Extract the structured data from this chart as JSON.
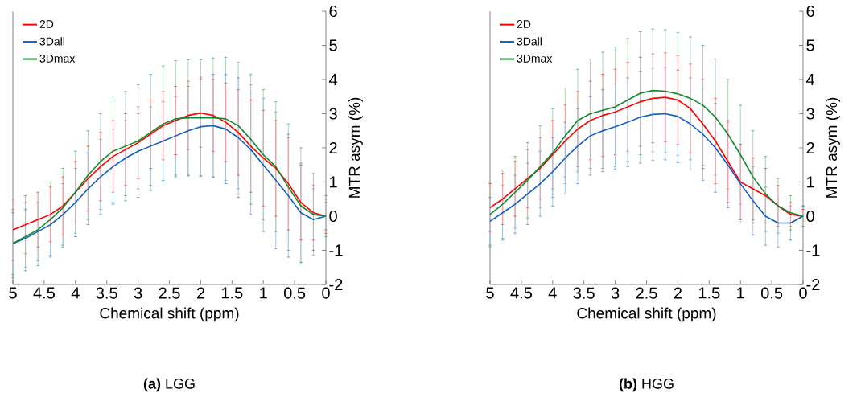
{
  "chart_data": [
    {
      "type": "line",
      "title": "**(a)** LGG",
      "xlabel": "Chemical shift (ppm)",
      "ylabel": "MTR asym (%)",
      "x": [
        5,
        4.8,
        4.6,
        4.4,
        4.2,
        4.0,
        3.8,
        3.6,
        3.4,
        3.2,
        3.0,
        2.8,
        2.6,
        2.4,
        2.2,
        2.0,
        1.8,
        1.6,
        1.4,
        1.2,
        1.0,
        0.8,
        0.6,
        0.4,
        0.2,
        0
      ],
      "series": [
        {
          "name": "2D",
          "color": "#ff0000",
          "values": [
            -0.4,
            -0.25,
            -0.1,
            0.05,
            0.3,
            0.7,
            1.1,
            1.45,
            1.75,
            1.95,
            2.15,
            2.4,
            2.65,
            2.8,
            2.95,
            3.02,
            2.95,
            2.75,
            2.45,
            2.05,
            1.7,
            1.4,
            0.95,
            0.4,
            0.1,
            0
          ],
          "errors": [
            0.9,
            0.85,
            0.8,
            0.8,
            0.85,
            0.9,
            0.95,
            1.0,
            1.05,
            1.05,
            1.05,
            1.0,
            1.0,
            1.0,
            1.0,
            1.0,
            1.05,
            1.15,
            1.25,
            1.35,
            1.4,
            1.4,
            1.35,
            1.1,
            0.8,
            0.5
          ]
        },
        {
          "name": "3Dall",
          "color": "#1060c0",
          "values": [
            -0.8,
            -0.65,
            -0.45,
            -0.25,
            0.05,
            0.4,
            0.8,
            1.15,
            1.45,
            1.7,
            1.9,
            2.05,
            2.2,
            2.35,
            2.5,
            2.62,
            2.65,
            2.55,
            2.3,
            1.95,
            1.5,
            1.05,
            0.6,
            0.1,
            -0.1,
            0
          ],
          "errors": [
            0.9,
            0.85,
            0.85,
            0.9,
            0.9,
            1.0,
            1.05,
            1.1,
            1.1,
            1.1,
            1.1,
            1.15,
            1.15,
            1.15,
            1.3,
            1.45,
            1.5,
            1.6,
            1.75,
            1.9,
            1.95,
            2.0,
            1.8,
            1.45,
            0.9,
            0.4
          ]
        },
        {
          "name": "3Dmax",
          "color": "#118a30",
          "values": [
            -0.8,
            -0.6,
            -0.4,
            -0.1,
            0.25,
            0.7,
            1.2,
            1.6,
            1.9,
            2.05,
            2.2,
            2.45,
            2.7,
            2.85,
            2.88,
            2.88,
            2.88,
            2.85,
            2.65,
            2.25,
            1.8,
            1.45,
            0.85,
            0.3,
            0.05,
            0
          ],
          "errors": [
            1.0,
            1.0,
            1.05,
            1.1,
            1.15,
            1.2,
            1.3,
            1.4,
            1.5,
            1.6,
            1.65,
            1.7,
            1.7,
            1.7,
            1.7,
            1.7,
            1.75,
            1.8,
            1.85,
            1.9,
            1.9,
            1.9,
            1.85,
            1.7,
            1.2,
            0.6
          ]
        }
      ],
      "xlim": [
        5,
        0
      ],
      "ylim": [
        -2,
        6
      ],
      "xticks": [
        5,
        4.5,
        4,
        3.5,
        3,
        2.5,
        2,
        1.5,
        1,
        0.5,
        0
      ],
      "yticks": [
        -2,
        -1,
        0,
        1,
        2,
        3,
        4,
        5,
        6
      ],
      "legend": "top left"
    },
    {
      "type": "line",
      "title": "**(b)** HGG",
      "xlabel": "Chemical shift (ppm)",
      "ylabel": "MTR asym (%)",
      "x": [
        5,
        4.8,
        4.6,
        4.4,
        4.2,
        4.0,
        3.8,
        3.6,
        3.4,
        3.2,
        3.0,
        2.8,
        2.6,
        2.4,
        2.2,
        2.0,
        1.8,
        1.6,
        1.4,
        1.2,
        1.0,
        0.8,
        0.6,
        0.4,
        0.2,
        0
      ],
      "series": [
        {
          "name": "2D",
          "color": "#ff0000",
          "values": [
            0.25,
            0.5,
            0.8,
            1.1,
            1.4,
            1.8,
            2.2,
            2.55,
            2.8,
            2.95,
            3.05,
            3.2,
            3.35,
            3.45,
            3.48,
            3.4,
            3.15,
            2.7,
            2.2,
            1.6,
            1.0,
            0.8,
            0.6,
            0.3,
            0.05,
            0
          ],
          "errors": [
            0.7,
            0.75,
            0.8,
            0.85,
            0.9,
            1.0,
            1.05,
            1.1,
            1.15,
            1.2,
            1.25,
            1.3,
            1.3,
            1.3,
            1.3,
            1.3,
            1.3,
            1.3,
            1.25,
            1.2,
            1.1,
            0.9,
            0.8,
            0.6,
            0.35,
            0.2
          ]
        },
        {
          "name": "3Dall",
          "color": "#1060c0",
          "values": [
            -0.15,
            0.1,
            0.35,
            0.65,
            0.95,
            1.3,
            1.7,
            2.05,
            2.35,
            2.5,
            2.62,
            2.75,
            2.9,
            2.98,
            3.0,
            2.92,
            2.7,
            2.4,
            2.0,
            1.5,
            0.95,
            0.45,
            0.0,
            -0.2,
            -0.2,
            0
          ],
          "errors": [
            0.7,
            0.8,
            0.85,
            0.9,
            0.95,
            1.0,
            1.05,
            1.1,
            1.15,
            1.2,
            1.25,
            1.3,
            1.35,
            1.35,
            1.35,
            1.35,
            1.35,
            1.35,
            1.3,
            1.25,
            1.15,
            1.0,
            0.85,
            0.7,
            0.5,
            0.3
          ]
        },
        {
          "name": "3Dmax",
          "color": "#118a30",
          "values": [
            0.05,
            0.35,
            0.7,
            1.05,
            1.45,
            1.85,
            2.35,
            2.8,
            3.0,
            3.1,
            3.2,
            3.4,
            3.6,
            3.68,
            3.66,
            3.58,
            3.45,
            3.25,
            2.9,
            2.4,
            1.8,
            1.15,
            0.65,
            0.3,
            0.1,
            0
          ],
          "errors": [
            0.95,
            1.0,
            1.05,
            1.1,
            1.2,
            1.3,
            1.4,
            1.5,
            1.6,
            1.7,
            1.75,
            1.8,
            1.8,
            1.8,
            1.8,
            1.8,
            1.8,
            1.75,
            1.7,
            1.6,
            1.45,
            1.35,
            1.1,
            0.8,
            0.5,
            0.3
          ]
        }
      ],
      "xlim": [
        5,
        0
      ],
      "ylim": [
        -2,
        6
      ],
      "xticks": [
        5,
        4.5,
        4,
        3.5,
        3,
        2.5,
        2,
        1.5,
        1,
        0.5,
        0
      ],
      "yticks": [
        -2,
        -1,
        0,
        1,
        2,
        3,
        4,
        5,
        6
      ],
      "legend": "top left"
    }
  ]
}
